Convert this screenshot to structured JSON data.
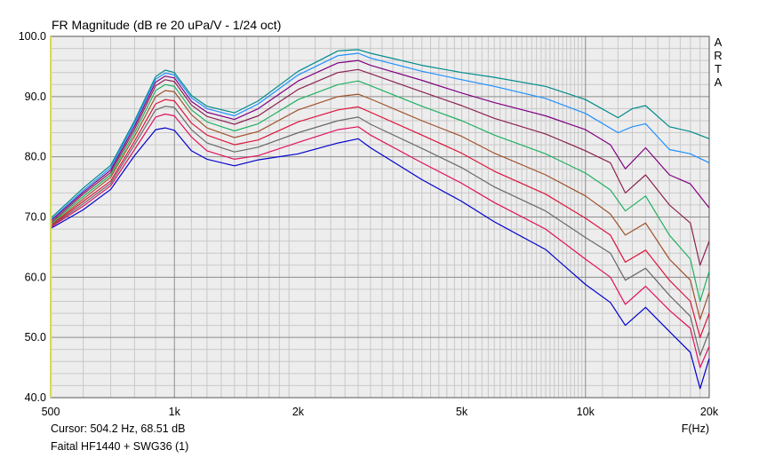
{
  "chart_data": {
    "type": "line",
    "title": "FR Magnitude (dB re 20 uPa/V - 1/24 oct)",
    "side_label": [
      "A",
      "R",
      "T",
      "A"
    ],
    "xlabel": "F(Hz)",
    "x_scale": "log",
    "xlim": [
      500,
      20000
    ],
    "ylim": [
      40,
      100
    ],
    "grid": true,
    "x_tick_labels": [
      {
        "f": 500,
        "label": "500"
      },
      {
        "f": 1000,
        "label": "1k"
      },
      {
        "f": 2000,
        "label": "2k"
      },
      {
        "f": 5000,
        "label": "5k"
      },
      {
        "f": 10000,
        "label": "10k"
      },
      {
        "f": 20000,
        "label": "20k"
      }
    ],
    "y_ticks": [
      100,
      90,
      80,
      70,
      60,
      50,
      40
    ],
    "y_tick_labels": [
      "100.0",
      "90.0",
      "80.0",
      "70.0",
      "60.0",
      "50.0",
      "40.0"
    ],
    "series": [
      {
        "color": "#008b8b",
        "values": [
          [
            500,
            69.8
          ],
          [
            600,
            74.8
          ],
          [
            700,
            78.6
          ],
          [
            800,
            86
          ],
          [
            900,
            93.3
          ],
          [
            950,
            94.4
          ],
          [
            1000,
            94
          ],
          [
            1100,
            90.2
          ],
          [
            1200,
            88.4
          ],
          [
            1400,
            87.3
          ],
          [
            1600,
            89.3
          ],
          [
            2000,
            94.2
          ],
          [
            2500,
            97.6
          ],
          [
            2800,
            97.8
          ],
          [
            3000,
            97.2
          ],
          [
            4000,
            95.2
          ],
          [
            5000,
            94
          ],
          [
            6000,
            93.2
          ],
          [
            8000,
            91.7
          ],
          [
            10000,
            89.5
          ],
          [
            12000,
            86.5
          ],
          [
            13000,
            88
          ],
          [
            14000,
            88.5
          ],
          [
            16000,
            85
          ],
          [
            18000,
            84.2
          ],
          [
            20000,
            83
          ]
        ]
      },
      {
        "color": "#1e90ff",
        "values": [
          [
            500,
            69.5
          ],
          [
            600,
            74.4
          ],
          [
            700,
            78.2
          ],
          [
            800,
            85.6
          ],
          [
            900,
            92.9
          ],
          [
            950,
            93.9
          ],
          [
            1000,
            93.6
          ],
          [
            1100,
            89.8
          ],
          [
            1200,
            88
          ],
          [
            1400,
            86.8
          ],
          [
            1600,
            88.8
          ],
          [
            2000,
            93.6
          ],
          [
            2500,
            96.8
          ],
          [
            2800,
            97.2
          ],
          [
            3000,
            96.4
          ],
          [
            4000,
            94.2
          ],
          [
            5000,
            92.8
          ],
          [
            6000,
            91.7
          ],
          [
            8000,
            89.7
          ],
          [
            10000,
            87.2
          ],
          [
            12000,
            84
          ],
          [
            13000,
            85
          ],
          [
            14000,
            85.5
          ],
          [
            16000,
            81.2
          ],
          [
            18000,
            80.5
          ],
          [
            20000,
            79
          ]
        ]
      },
      {
        "color": "#800080",
        "values": [
          [
            500,
            69.3
          ],
          [
            600,
            74.1
          ],
          [
            700,
            77.8
          ],
          [
            800,
            85.1
          ],
          [
            900,
            92.4
          ],
          [
            950,
            93.4
          ],
          [
            1000,
            93.1
          ],
          [
            1100,
            89.2
          ],
          [
            1200,
            87.4
          ],
          [
            1400,
            86.2
          ],
          [
            1600,
            88
          ],
          [
            2000,
            92.6
          ],
          [
            2500,
            95.6
          ],
          [
            2800,
            96
          ],
          [
            3000,
            95.2
          ],
          [
            4000,
            92.7
          ],
          [
            5000,
            90.6
          ],
          [
            6000,
            89
          ],
          [
            8000,
            86.8
          ],
          [
            10000,
            84.5
          ],
          [
            11500,
            82
          ],
          [
            12500,
            78
          ],
          [
            14000,
            81.5
          ],
          [
            16000,
            77
          ],
          [
            18000,
            75.5
          ],
          [
            20000,
            71.5
          ]
        ]
      },
      {
        "color": "#8b2252",
        "values": [
          [
            500,
            69
          ],
          [
            600,
            73.8
          ],
          [
            700,
            77.4
          ],
          [
            800,
            84.6
          ],
          [
            900,
            91.8
          ],
          [
            950,
            92.8
          ],
          [
            1000,
            92.5
          ],
          [
            1100,
            88.6
          ],
          [
            1200,
            86.7
          ],
          [
            1400,
            85.4
          ],
          [
            1600,
            86.8
          ],
          [
            2000,
            91.2
          ],
          [
            2500,
            94
          ],
          [
            2800,
            94.5
          ],
          [
            3000,
            93.8
          ],
          [
            4000,
            90.8
          ],
          [
            5000,
            88.5
          ],
          [
            6000,
            86.4
          ],
          [
            8000,
            83.8
          ],
          [
            10000,
            81
          ],
          [
            11500,
            79
          ],
          [
            12500,
            74
          ],
          [
            14000,
            77
          ],
          [
            16000,
            72
          ],
          [
            18000,
            69
          ],
          [
            19000,
            62
          ],
          [
            20000,
            66
          ]
        ]
      },
      {
        "color": "#20b060",
        "values": [
          [
            500,
            68.8
          ],
          [
            600,
            73.4
          ],
          [
            700,
            77
          ],
          [
            800,
            84
          ],
          [
            900,
            91
          ],
          [
            950,
            92
          ],
          [
            1000,
            91.7
          ],
          [
            1100,
            87.8
          ],
          [
            1200,
            85.8
          ],
          [
            1400,
            84.3
          ],
          [
            1600,
            85.5
          ],
          [
            2000,
            89.5
          ],
          [
            2500,
            92
          ],
          [
            2800,
            92.6
          ],
          [
            3000,
            91.8
          ],
          [
            4000,
            88.4
          ],
          [
            5000,
            86
          ],
          [
            6000,
            83.6
          ],
          [
            8000,
            80.5
          ],
          [
            10000,
            77.3
          ],
          [
            11500,
            74.5
          ],
          [
            12500,
            71
          ],
          [
            14000,
            73.5
          ],
          [
            16000,
            67
          ],
          [
            18000,
            63
          ],
          [
            19000,
            56
          ],
          [
            20000,
            61
          ]
        ]
      },
      {
        "color": "#a0522d",
        "values": [
          [
            500,
            68.6
          ],
          [
            600,
            73
          ],
          [
            700,
            76.6
          ],
          [
            800,
            83.4
          ],
          [
            900,
            90
          ],
          [
            950,
            91
          ],
          [
            1000,
            90.8
          ],
          [
            1100,
            87
          ],
          [
            1200,
            84.8
          ],
          [
            1400,
            83.2
          ],
          [
            1600,
            84.2
          ],
          [
            2000,
            87.8
          ],
          [
            2500,
            90
          ],
          [
            2800,
            90.4
          ],
          [
            3000,
            89.6
          ],
          [
            4000,
            86
          ],
          [
            5000,
            83.4
          ],
          [
            6000,
            80.6
          ],
          [
            8000,
            77
          ],
          [
            10000,
            73.5
          ],
          [
            11500,
            70.5
          ],
          [
            12500,
            67
          ],
          [
            14000,
            69
          ],
          [
            16000,
            63
          ],
          [
            18000,
            59.5
          ],
          [
            19000,
            53
          ],
          [
            20000,
            57.5
          ]
        ]
      },
      {
        "color": "#dc143c",
        "values": [
          [
            500,
            68.5
          ],
          [
            600,
            72.6
          ],
          [
            700,
            76
          ],
          [
            800,
            82.6
          ],
          [
            900,
            88.8
          ],
          [
            950,
            89.5
          ],
          [
            1000,
            89.3
          ],
          [
            1100,
            85.6
          ],
          [
            1200,
            83.6
          ],
          [
            1400,
            82
          ],
          [
            1600,
            82.8
          ],
          [
            2000,
            85.8
          ],
          [
            2500,
            87.8
          ],
          [
            2800,
            88.3
          ],
          [
            3000,
            87.4
          ],
          [
            4000,
            83.6
          ],
          [
            5000,
            80.6
          ],
          [
            6000,
            77.6
          ],
          [
            8000,
            73.8
          ],
          [
            10000,
            69.8
          ],
          [
            11500,
            67
          ],
          [
            12500,
            62.5
          ],
          [
            14000,
            64.5
          ],
          [
            16000,
            59.5
          ],
          [
            18000,
            56
          ],
          [
            19000,
            50
          ],
          [
            20000,
            54
          ]
        ]
      },
      {
        "color": "#696969",
        "values": [
          [
            500,
            68.4
          ],
          [
            600,
            72.2
          ],
          [
            700,
            75.6
          ],
          [
            800,
            82
          ],
          [
            900,
            87.8
          ],
          [
            950,
            88.4
          ],
          [
            1000,
            88.2
          ],
          [
            1100,
            84.5
          ],
          [
            1200,
            82.3
          ],
          [
            1400,
            80.8
          ],
          [
            1600,
            81.6
          ],
          [
            2000,
            84
          ],
          [
            2500,
            86
          ],
          [
            2800,
            86.6
          ],
          [
            3000,
            85.4
          ],
          [
            4000,
            81.4
          ],
          [
            5000,
            78.2
          ],
          [
            6000,
            75
          ],
          [
            8000,
            71
          ],
          [
            10000,
            66.6
          ],
          [
            11500,
            64
          ],
          [
            12500,
            59.5
          ],
          [
            14000,
            61.5
          ],
          [
            16000,
            57
          ],
          [
            18000,
            53.5
          ],
          [
            19000,
            47
          ],
          [
            20000,
            51
          ]
        ]
      },
      {
        "color": "#e0115f",
        "values": [
          [
            500,
            68.3
          ],
          [
            600,
            71.8
          ],
          [
            700,
            75.2
          ],
          [
            800,
            81.2
          ],
          [
            900,
            86.6
          ],
          [
            950,
            87.1
          ],
          [
            1000,
            86.8
          ],
          [
            1100,
            83.3
          ],
          [
            1200,
            81
          ],
          [
            1400,
            79.6
          ],
          [
            1600,
            80.2
          ],
          [
            2000,
            82.4
          ],
          [
            2500,
            84.5
          ],
          [
            2800,
            85
          ],
          [
            3000,
            83.6
          ],
          [
            4000,
            79
          ],
          [
            5000,
            75.6
          ],
          [
            6000,
            72.4
          ],
          [
            8000,
            68
          ],
          [
            10000,
            63
          ],
          [
            11500,
            60
          ],
          [
            12500,
            55.5
          ],
          [
            14000,
            58.5
          ],
          [
            16000,
            54.5
          ],
          [
            18000,
            51.5
          ],
          [
            19000,
            45
          ],
          [
            20000,
            48.5
          ]
        ]
      },
      {
        "color": "#0000cd",
        "values": [
          [
            500,
            68.1
          ],
          [
            600,
            71.2
          ],
          [
            700,
            74.6
          ],
          [
            800,
            80.2
          ],
          [
            900,
            84.5
          ],
          [
            950,
            84.8
          ],
          [
            1000,
            84.4
          ],
          [
            1100,
            81
          ],
          [
            1200,
            79.6
          ],
          [
            1400,
            78.5
          ],
          [
            1600,
            79.5
          ],
          [
            2000,
            80.5
          ],
          [
            2500,
            82.3
          ],
          [
            2800,
            83
          ],
          [
            3000,
            81.5
          ],
          [
            4000,
            76.2
          ],
          [
            5000,
            72.6
          ],
          [
            6000,
            69.2
          ],
          [
            8000,
            64.6
          ],
          [
            10000,
            58.8
          ],
          [
            11500,
            55.8
          ],
          [
            12500,
            52
          ],
          [
            14000,
            55
          ],
          [
            16000,
            51
          ],
          [
            18000,
            47.5
          ],
          [
            19000,
            41.5
          ],
          [
            20000,
            46.5
          ]
        ]
      }
    ]
  },
  "footer": {
    "cursor": "Cursor: 504.2 Hz, 68.51 dB",
    "name": "Faital HF1440 + SWG36 (1)"
  }
}
